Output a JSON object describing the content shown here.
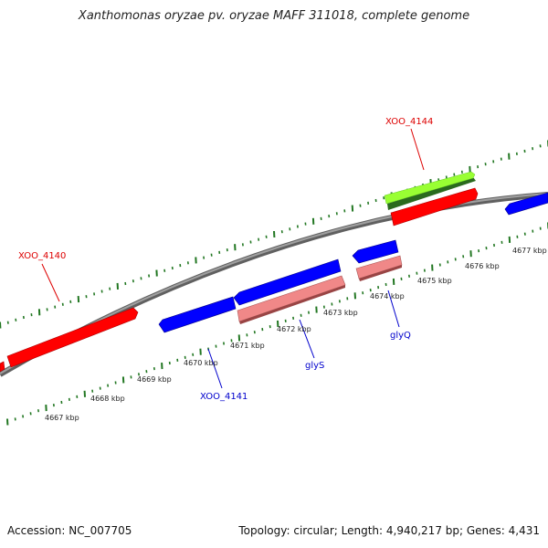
{
  "title": "Xanthomonas oryzae pv. oryzae MAFF 311018, complete genome",
  "footer": {
    "accession": "Accession: NC_007705",
    "topology": "Topology: circular; Length: 4,940,217 bp; Genes: 4,431"
  },
  "colors": {
    "forward_gene": "#ff0000",
    "reverse_gene": "#0000ff",
    "rna_gene": "#ee8888",
    "cds_light": "#99ff33",
    "cds_dark": "#337722",
    "backbone": "#888888",
    "ticks": "#227722",
    "label_forward": "#dd0000",
    "label_reverse": "#0000cc"
  },
  "scale_labels": [
    "4667 kbp",
    "4668 kbp",
    "4669 kbp",
    "4670 kbp",
    "4671 kbp",
    "4672 kbp",
    "4673 kbp",
    "4674 kbp",
    "4675 kbp",
    "4676 kbp",
    "4677 kbp"
  ],
  "gene_labels": {
    "xoo4144": "XOO_4144",
    "xoo4140": "XOO_4140",
    "xoo4141": "XOO_4141",
    "glys": "glyS",
    "glyq": "glyQ"
  }
}
